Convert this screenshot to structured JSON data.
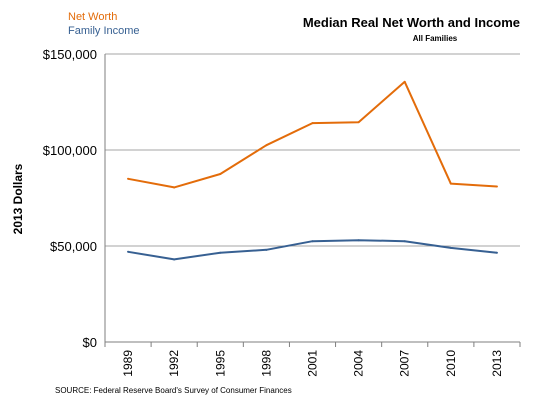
{
  "chart_data": {
    "type": "line",
    "title": "Median Real Net Worth and Income",
    "subtitle": "All Families",
    "ylabel": "2013 Dollars",
    "xlabel": "",
    "source": "SOURCE: Federal Reserve Board's Survey of Consumer Finances",
    "categories": [
      "1989",
      "1992",
      "1995",
      "1998",
      "2001",
      "2004",
      "2007",
      "2010",
      "2013"
    ],
    "ylim": [
      0,
      150000
    ],
    "yticks": [
      0,
      50000,
      100000,
      150000
    ],
    "ytick_labels": [
      "$0",
      "$50,000",
      "$100,000",
      "$150,000"
    ],
    "grid": true,
    "legend_position": "top-left",
    "series": [
      {
        "name": "Net Worth",
        "color": "#E36C0A",
        "values": [
          85000,
          80500,
          87500,
          102500,
          114000,
          114500,
          135500,
          82500,
          81000
        ]
      },
      {
        "name": "Family Income",
        "color": "#376092",
        "values": [
          47000,
          43000,
          46500,
          48000,
          52500,
          53000,
          52500,
          49000,
          46500
        ]
      }
    ]
  }
}
